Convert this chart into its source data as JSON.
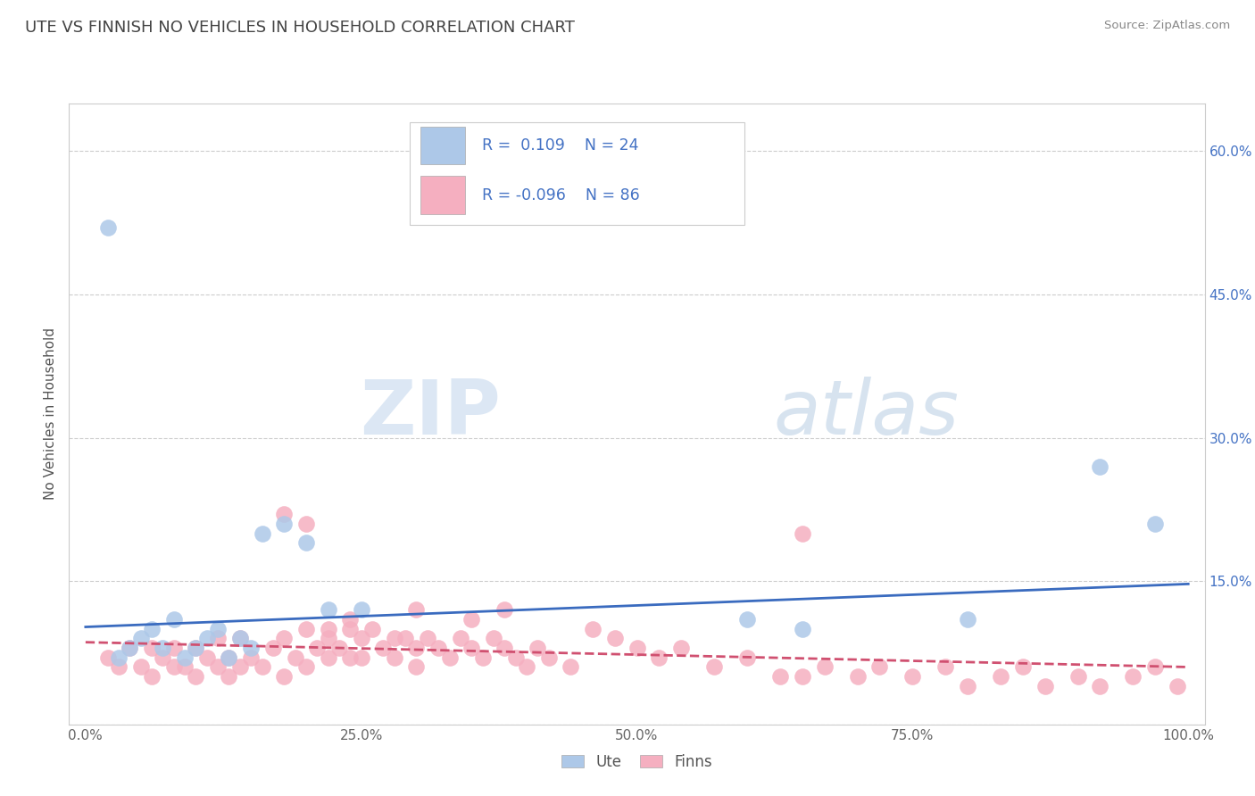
{
  "title": "UTE VS FINNISH NO VEHICLES IN HOUSEHOLD CORRELATION CHART",
  "source": "Source: ZipAtlas.com",
  "ylabel": "No Vehicles in Household",
  "ute_color": "#adc8e8",
  "finn_color": "#f5afc0",
  "ute_line_color": "#3a6bbf",
  "finn_line_color": "#d05070",
  "ute_R": 0.109,
  "ute_N": 24,
  "finn_R": -0.096,
  "finn_N": 86,
  "legend_label_ute": "Ute",
  "legend_label_finn": "Finns",
  "watermark_zip": "ZIP",
  "watermark_atlas": "atlas",
  "ytick_vals": [
    0.0,
    0.15,
    0.3,
    0.45,
    0.6
  ],
  "ytick_labels_right": [
    "",
    "15.0%",
    "30.0%",
    "45.0%",
    "60.0%"
  ],
  "xtick_vals": [
    0.0,
    0.25,
    0.5,
    0.75,
    1.0
  ],
  "xtick_labels": [
    "0.0%",
    "25.0%",
    "50.0%",
    "75.0%",
    "100.0%"
  ],
  "ute_scatter_x": [
    0.02,
    0.04,
    0.05,
    0.06,
    0.07,
    0.08,
    0.09,
    0.1,
    0.11,
    0.12,
    0.13,
    0.14,
    0.15,
    0.16,
    0.18,
    0.2,
    0.22,
    0.25,
    0.6,
    0.65,
    0.8,
    0.92,
    0.97,
    0.03
  ],
  "ute_scatter_y": [
    0.52,
    0.08,
    0.09,
    0.1,
    0.08,
    0.11,
    0.07,
    0.08,
    0.09,
    0.1,
    0.07,
    0.09,
    0.08,
    0.2,
    0.21,
    0.19,
    0.12,
    0.12,
    0.11,
    0.1,
    0.11,
    0.27,
    0.21,
    0.07
  ],
  "finn_scatter_x": [
    0.02,
    0.03,
    0.04,
    0.05,
    0.06,
    0.06,
    0.07,
    0.08,
    0.08,
    0.09,
    0.1,
    0.1,
    0.11,
    0.12,
    0.12,
    0.13,
    0.13,
    0.14,
    0.14,
    0.15,
    0.16,
    0.17,
    0.18,
    0.18,
    0.19,
    0.2,
    0.2,
    0.21,
    0.22,
    0.22,
    0.23,
    0.24,
    0.24,
    0.25,
    0.25,
    0.26,
    0.27,
    0.28,
    0.28,
    0.29,
    0.3,
    0.3,
    0.31,
    0.32,
    0.33,
    0.34,
    0.35,
    0.35,
    0.36,
    0.37,
    0.38,
    0.39,
    0.4,
    0.41,
    0.42,
    0.44,
    0.46,
    0.48,
    0.5,
    0.52,
    0.54,
    0.57,
    0.6,
    0.63,
    0.65,
    0.67,
    0.7,
    0.72,
    0.75,
    0.78,
    0.8,
    0.83,
    0.85,
    0.87,
    0.9,
    0.92,
    0.95,
    0.97,
    0.99,
    0.38,
    0.24,
    0.18,
    0.2,
    0.22,
    0.3,
    0.65
  ],
  "finn_scatter_y": [
    0.07,
    0.06,
    0.08,
    0.06,
    0.08,
    0.05,
    0.07,
    0.06,
    0.08,
    0.06,
    0.08,
    0.05,
    0.07,
    0.06,
    0.09,
    0.07,
    0.05,
    0.09,
    0.06,
    0.07,
    0.06,
    0.08,
    0.05,
    0.09,
    0.07,
    0.1,
    0.06,
    0.08,
    0.07,
    0.09,
    0.08,
    0.07,
    0.1,
    0.09,
    0.07,
    0.1,
    0.08,
    0.09,
    0.07,
    0.09,
    0.08,
    0.06,
    0.09,
    0.08,
    0.07,
    0.09,
    0.08,
    0.11,
    0.07,
    0.09,
    0.08,
    0.07,
    0.06,
    0.08,
    0.07,
    0.06,
    0.1,
    0.09,
    0.08,
    0.07,
    0.08,
    0.06,
    0.07,
    0.05,
    0.2,
    0.06,
    0.05,
    0.06,
    0.05,
    0.06,
    0.04,
    0.05,
    0.06,
    0.04,
    0.05,
    0.04,
    0.05,
    0.06,
    0.04,
    0.12,
    0.11,
    0.22,
    0.21,
    0.1,
    0.12,
    0.05
  ],
  "ute_line_x": [
    0.0,
    1.0
  ],
  "ute_line_y": [
    0.102,
    0.147
  ],
  "finn_line_x": [
    0.0,
    1.0
  ],
  "finn_line_y": [
    0.086,
    0.06
  ]
}
